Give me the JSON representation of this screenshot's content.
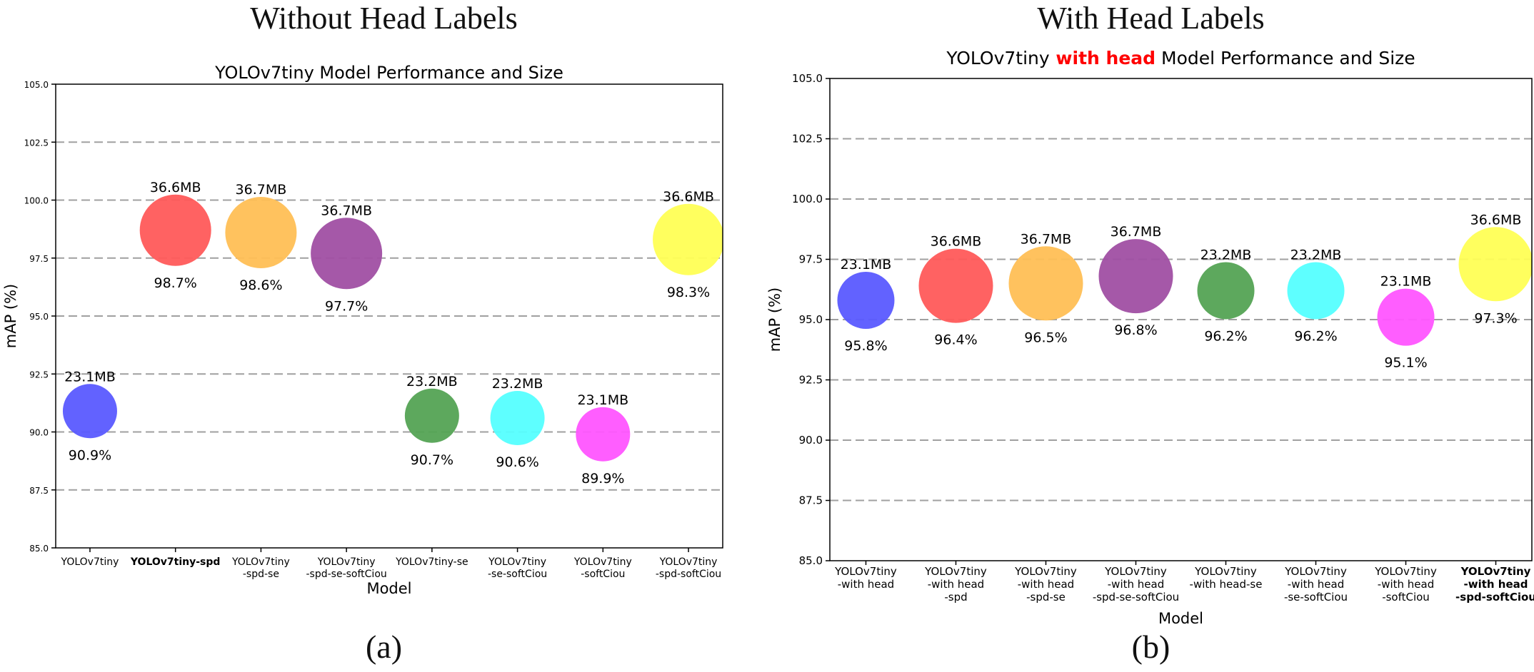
{
  "panel_headings": {
    "a": "Without Head Labels",
    "b": "With Head Labels"
  },
  "panel_captions": {
    "a": "(a)",
    "b": "(b)"
  },
  "chart_data": [
    {
      "type": "scatter",
      "title": "YOLOv7tiny Model Performance and Size",
      "xlabel": "Model",
      "ylabel": "mAP (%)",
      "ylim": [
        85.0,
        105.0
      ],
      "yticks": [
        "85.0",
        "87.5",
        "90.0",
        "92.5",
        "95.0",
        "97.5",
        "100.0",
        "102.5",
        "105.0"
      ],
      "grid": "horizontal dashed",
      "highlight_color": "#ff0000",
      "points": [
        {
          "label": [
            "YOLOv7tiny"
          ],
          "map": 90.9,
          "map_label": "90.9%",
          "size_mb": 23.1,
          "size_label": "23.1MB",
          "color": "#5a5aff",
          "highlight": false
        },
        {
          "label": [
            "YOLOv7tiny-spd"
          ],
          "map": 98.7,
          "map_label": "98.7%",
          "size_mb": 36.6,
          "size_label": "36.6MB",
          "color": "#ff5a5a",
          "highlight": true
        },
        {
          "label": [
            "YOLOv7tiny",
            "-spd-se"
          ],
          "map": 98.6,
          "map_label": "98.6%",
          "size_mb": 36.7,
          "size_label": "36.7MB",
          "color": "#ffbf55",
          "highlight": false
        },
        {
          "label": [
            "YOLOv7tiny",
            "-spd-se-softCiou"
          ],
          "map": 97.7,
          "map_label": "97.7%",
          "size_mb": 36.7,
          "size_label": "36.7MB",
          "color": "#a04fa3",
          "highlight": false
        },
        {
          "label": [
            "YOLOv7tiny-se"
          ],
          "map": 90.7,
          "map_label": "90.7%",
          "size_mb": 23.2,
          "size_label": "23.2MB",
          "color": "#54a354",
          "highlight": false
        },
        {
          "label": [
            "YOLOv7tiny",
            "-se-softCiou"
          ],
          "map": 90.6,
          "map_label": "90.6%",
          "size_mb": 23.2,
          "size_label": "23.2MB",
          "color": "#55ffff",
          "highlight": false
        },
        {
          "label": [
            "YOLOv7tiny",
            "-softCiou"
          ],
          "map": 89.9,
          "map_label": "89.9%",
          "size_mb": 23.1,
          "size_label": "23.1MB",
          "color": "#ff55ff",
          "highlight": false
        },
        {
          "label": [
            "YOLOv7tiny",
            "-spd-softCiou"
          ],
          "map": 98.3,
          "map_label": "98.3%",
          "size_mb": 36.6,
          "size_label": "36.6MB",
          "color": "#ffff55",
          "highlight": false
        }
      ]
    },
    {
      "type": "scatter",
      "title_parts": [
        "YOLOv7tiny",
        "with head",
        "Model Performance and Size"
      ],
      "xlabel": "Model",
      "ylabel": "mAP (%)",
      "ylim": [
        85.0,
        105.0
      ],
      "yticks": [
        "85.0",
        "87.5",
        "90.0",
        "92.5",
        "95.0",
        "97.5",
        "100.0",
        "102.5",
        "105.0"
      ],
      "grid": "horizontal dashed",
      "highlight_color": "#ff0000",
      "points": [
        {
          "label": [
            "YOLOv7tiny",
            "-with head"
          ],
          "map": 95.8,
          "map_label": "95.8%",
          "size_mb": 23.1,
          "size_label": "23.1MB",
          "color": "#5a5aff",
          "highlight": false
        },
        {
          "label": [
            "YOLOv7tiny",
            "-with head",
            "-spd"
          ],
          "map": 96.4,
          "map_label": "96.4%",
          "size_mb": 36.6,
          "size_label": "36.6MB",
          "color": "#ff5a5a",
          "highlight": false
        },
        {
          "label": [
            "YOLOv7tiny",
            "-with head",
            "-spd-se"
          ],
          "map": 96.5,
          "map_label": "96.5%",
          "size_mb": 36.7,
          "size_label": "36.7MB",
          "color": "#ffbf55",
          "highlight": false
        },
        {
          "label": [
            "YOLOv7tiny",
            "-with head",
            "-spd-se-softCiou"
          ],
          "map": 96.8,
          "map_label": "96.8%",
          "size_mb": 36.7,
          "size_label": "36.7MB",
          "color": "#a04fa3",
          "highlight": false
        },
        {
          "label": [
            "YOLOv7tiny",
            "-with head-se"
          ],
          "map": 96.2,
          "map_label": "96.2%",
          "size_mb": 23.2,
          "size_label": "23.2MB",
          "color": "#54a354",
          "highlight": false
        },
        {
          "label": [
            "YOLOv7tiny",
            "-with head",
            "-se-softCiou"
          ],
          "map": 96.2,
          "map_label": "96.2%",
          "size_mb": 23.2,
          "size_label": "23.2MB",
          "color": "#55ffff",
          "highlight": false
        },
        {
          "label": [
            "YOLOv7tiny",
            "-with head",
            "-softCiou"
          ],
          "map": 95.1,
          "map_label": "95.1%",
          "size_mb": 23.1,
          "size_label": "23.1MB",
          "color": "#ff55ff",
          "highlight": false
        },
        {
          "label": [
            "YOLOv7tiny",
            "-with head",
            "-spd-softCiou"
          ],
          "map": 97.3,
          "map_label": "97.3%",
          "size_mb": 36.6,
          "size_label": "36.6MB",
          "color": "#ffff55",
          "highlight": true
        }
      ]
    }
  ]
}
